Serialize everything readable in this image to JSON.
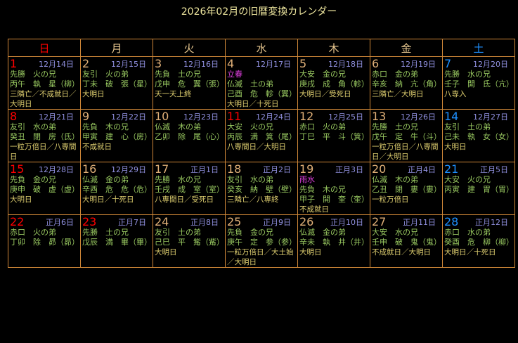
{
  "title": "2026年02月の旧暦変換カレンダー",
  "colors": {
    "sunday": "#ff0000",
    "saturday": "#1e90ff",
    "weekday": "#e0b078",
    "border": "#d08838",
    "lunar": "#9090e0",
    "rokuyo": "#98c860",
    "note": "#e0d070",
    "solar_term": "#e040e0"
  },
  "weekdays": [
    "日",
    "月",
    "火",
    "水",
    "木",
    "金",
    "土"
  ],
  "days": [
    {
      "day": "1",
      "lunar": "12月14日",
      "term": "",
      "rokuyo": "先勝　火の兄",
      "kanshi": "丙午　執　星（柳）",
      "note": "三隣亡／不成就日／大明日",
      "holiday": true
    },
    {
      "day": "2",
      "lunar": "12月15日",
      "term": "",
      "rokuyo": "友引　火の弟",
      "kanshi": "丁未　破　張（星）",
      "note": "大明日"
    },
    {
      "day": "3",
      "lunar": "12月16日",
      "term": "",
      "rokuyo": "先負　土の兄",
      "kanshi": "戊申　危　翼（張）",
      "note": "天一天上終"
    },
    {
      "day": "4",
      "lunar": "12月17日",
      "term": "立春",
      "rokuyo": "仏滅　土の弟",
      "kanshi": "己酉　危　軫（翼）",
      "note": "大明日／十死日"
    },
    {
      "day": "5",
      "lunar": "12月18日",
      "term": "",
      "rokuyo": "大安　金の兄",
      "kanshi": "庚戌　成　角（軫）",
      "note": "大明日／受死日"
    },
    {
      "day": "6",
      "lunar": "12月19日",
      "term": "",
      "rokuyo": "赤口　金の弟",
      "kanshi": "辛亥　納　亢（角）",
      "note": "三隣亡／大明日"
    },
    {
      "day": "7",
      "lunar": "12月20日",
      "term": "",
      "rokuyo": "先勝　水の兄",
      "kanshi": "壬子　開　氐（亢）",
      "note": "八専入"
    },
    {
      "day": "8",
      "lunar": "12月21日",
      "term": "",
      "rokuyo": "友引　水の弟",
      "kanshi": "癸丑　閉　房（氐）",
      "note": "一粒万倍日／八専間日",
      "holiday": true
    },
    {
      "day": "9",
      "lunar": "12月22日",
      "term": "",
      "rokuyo": "先負　木の兄",
      "kanshi": "甲寅　建　心（房）",
      "note": "不成就日"
    },
    {
      "day": "10",
      "lunar": "12月23日",
      "term": "",
      "rokuyo": "仏滅　木の弟",
      "kanshi": "乙卯　除　尾（心）",
      "note": ""
    },
    {
      "day": "11",
      "lunar": "12月24日",
      "term": "",
      "rokuyo": "大安　火の兄",
      "kanshi": "丙辰　満　箕（尾）",
      "note": "八専間日／大明日",
      "holiday": true
    },
    {
      "day": "12",
      "lunar": "12月25日",
      "term": "",
      "rokuyo": "赤口　火の弟",
      "kanshi": "丁巳　平　斗（箕）",
      "note": ""
    },
    {
      "day": "13",
      "lunar": "12月26日",
      "term": "",
      "rokuyo": "先勝　土の兄",
      "kanshi": "戊午　定　牛（斗）",
      "note": "一粒万倍日／八専間日／大明日"
    },
    {
      "day": "14",
      "lunar": "12月27日",
      "term": "",
      "rokuyo": "友引　土の弟",
      "kanshi": "己未　執　女（女）",
      "note": "大明日"
    },
    {
      "day": "15",
      "lunar": "12月28日",
      "term": "",
      "rokuyo": "先負　金の兄",
      "kanshi": "庚申　破　虚（虚）",
      "note": "大明日",
      "holiday": true
    },
    {
      "day": "16",
      "lunar": "12月29日",
      "term": "",
      "rokuyo": "仏滅　金の弟",
      "kanshi": "辛酉　危　危（危）",
      "note": "大明日／十死日"
    },
    {
      "day": "17",
      "lunar": "正月1日",
      "term": "",
      "rokuyo": "先勝　水の兄",
      "kanshi": "壬戌　成　室（室）",
      "note": "八専間日／受死日"
    },
    {
      "day": "18",
      "lunar": "正月2日",
      "term": "",
      "rokuyo": "友引　水の弟",
      "kanshi": "癸亥　納　壁（壁）",
      "note": "三隣亡／八専終"
    },
    {
      "day": "19",
      "lunar": "正月3日",
      "term": "雨水",
      "rokuyo": "先負　木の兄",
      "kanshi": "甲子　開　奎（奎）",
      "note": "不成就日"
    },
    {
      "day": "20",
      "lunar": "正月4日",
      "term": "",
      "rokuyo": "仏滅　木の弟",
      "kanshi": "乙丑　閉　婁（婁）",
      "note": "一粒万倍日"
    },
    {
      "day": "21",
      "lunar": "正月5日",
      "term": "",
      "rokuyo": "大安　火の兄",
      "kanshi": "丙寅　建　胃（胃）",
      "note": ""
    },
    {
      "day": "22",
      "lunar": "正月6日",
      "term": "",
      "rokuyo": "赤口　火の弟",
      "kanshi": "丁卯　除　昴（昴）",
      "note": "",
      "holiday": true
    },
    {
      "day": "23",
      "lunar": "正月7日",
      "term": "",
      "rokuyo": "先勝　土の兄",
      "kanshi": "戊辰　満　畢（畢）",
      "note": "",
      "holiday": true
    },
    {
      "day": "24",
      "lunar": "正月8日",
      "term": "",
      "rokuyo": "友引　土の弟",
      "kanshi": "己巳　平　觜（觜）",
      "note": "大明日"
    },
    {
      "day": "25",
      "lunar": "正月9日",
      "term": "",
      "rokuyo": "先負　金の兄",
      "kanshi": "庚午　定　参（参）",
      "note": "一粒万倍日／大土始／大明日"
    },
    {
      "day": "26",
      "lunar": "正月10日",
      "term": "",
      "rokuyo": "仏滅　金の弟",
      "kanshi": "辛未　執　井（井）",
      "note": "大明日"
    },
    {
      "day": "27",
      "lunar": "正月11日",
      "term": "",
      "rokuyo": "大安　水の兄",
      "kanshi": "壬申　破　鬼（鬼）",
      "note": "不成就日／大明日"
    },
    {
      "day": "28",
      "lunar": "正月12日",
      "term": "",
      "rokuyo": "赤口　水の弟",
      "kanshi": "癸酉　危　柳（柳）",
      "note": "大明日／十死日"
    }
  ]
}
